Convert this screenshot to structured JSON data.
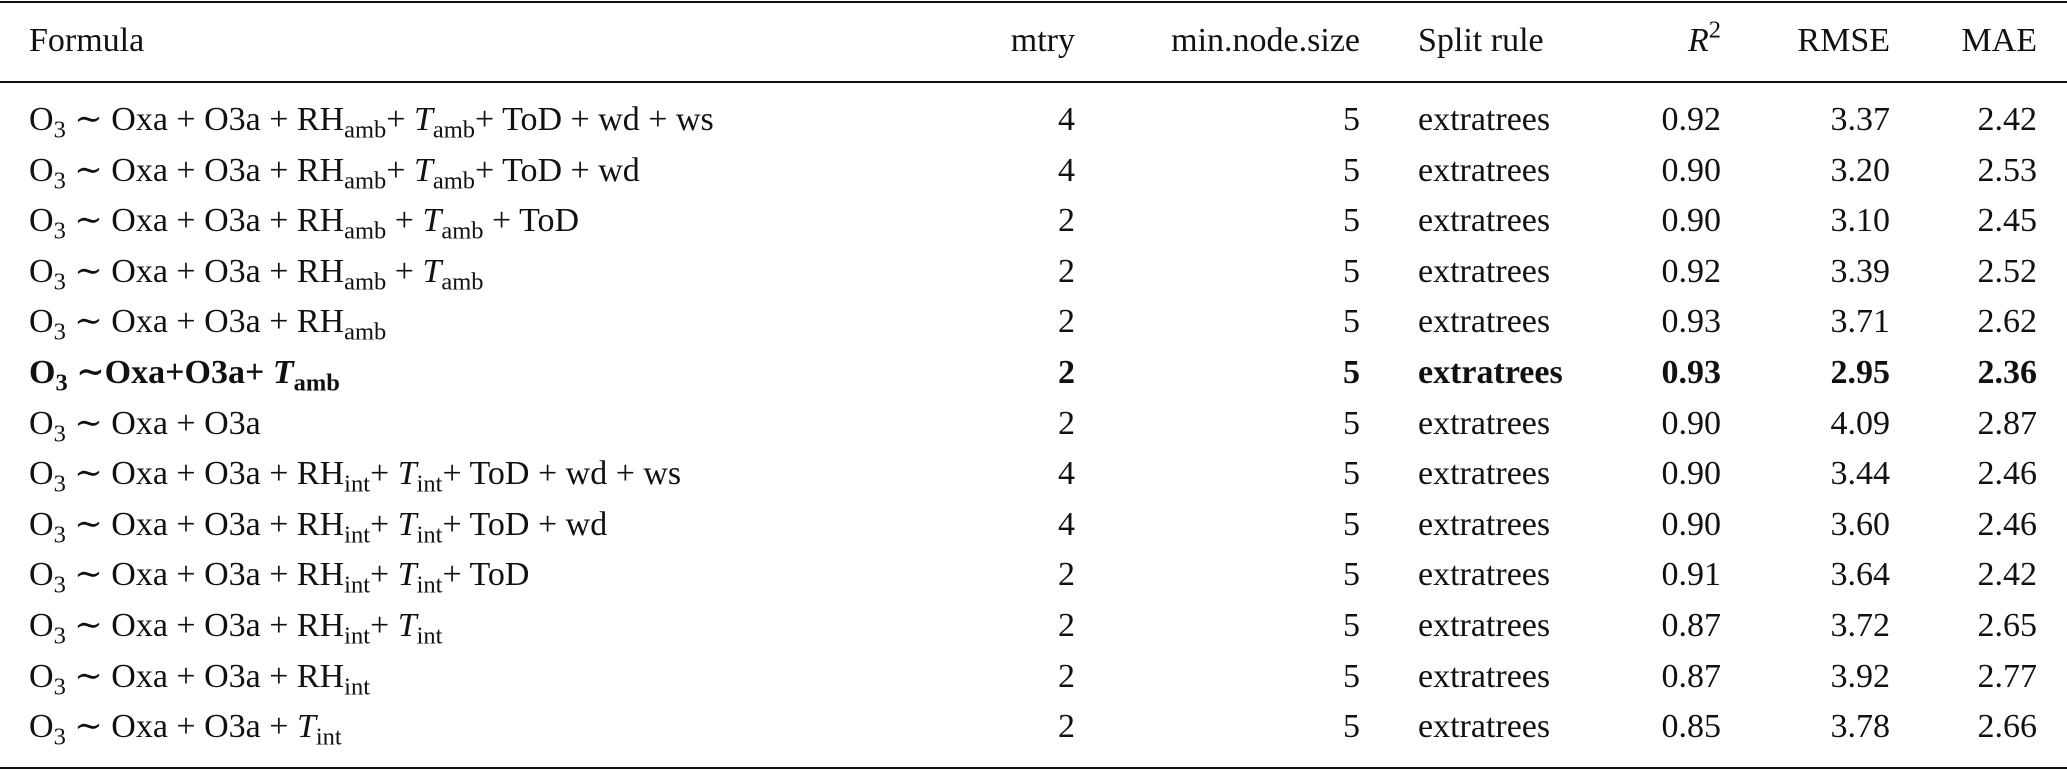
{
  "table": {
    "header": [
      "Formula",
      "mtry",
      "min.node.size",
      "Split rule",
      [
        {
          "it": "R"
        },
        {
          "sup": "2"
        }
      ],
      "RMSE",
      "MAE"
    ],
    "highlight_row": 5,
    "rows": [
      [
        [
          "O",
          {
            "sub": "3"
          },
          " ∼ Oxa + O3a + RH",
          {
            "sub": "amb"
          },
          "+ ",
          {
            "it": "T"
          },
          {
            "sub": "amb"
          },
          "+ ToD + wd + ws"
        ],
        "4",
        "5",
        "extratrees",
        "0.92",
        "3.37",
        "2.42"
      ],
      [
        [
          "O",
          {
            "sub": "3"
          },
          " ∼ Oxa + O3a + RH",
          {
            "sub": "amb"
          },
          "+ ",
          {
            "it": "T"
          },
          {
            "sub": "amb"
          },
          "+ ToD + wd"
        ],
        "4",
        "5",
        "extratrees",
        "0.90",
        "3.20",
        "2.53"
      ],
      [
        [
          "O",
          {
            "sub": "3"
          },
          " ∼ Oxa + O3a + RH",
          {
            "sub": "amb"
          },
          " + ",
          {
            "it": "T"
          },
          {
            "sub": "amb"
          },
          " + ToD"
        ],
        "2",
        "5",
        "extratrees",
        "0.90",
        "3.10",
        "2.45"
      ],
      [
        [
          "O",
          {
            "sub": "3"
          },
          " ∼ Oxa + O3a + RH",
          {
            "sub": "amb"
          },
          " + ",
          {
            "it": "T"
          },
          {
            "sub": "amb"
          }
        ],
        "2",
        "5",
        "extratrees",
        "0.92",
        "3.39",
        "2.52"
      ],
      [
        [
          "O",
          {
            "sub": "3"
          },
          " ∼ Oxa + O3a + RH",
          {
            "sub": "amb"
          }
        ],
        "2",
        "5",
        "extratrees",
        "0.93",
        "3.71",
        "2.62"
      ],
      [
        [
          "O",
          {
            "sub": "3"
          },
          " ∼Oxa+O3a+ ",
          {
            "it": "T"
          },
          {
            "sub": "amb"
          }
        ],
        "2",
        "5",
        "extratrees",
        "0.93",
        "2.95",
        "2.36"
      ],
      [
        [
          "O",
          {
            "sub": "3"
          },
          " ∼ Oxa + O3a"
        ],
        "2",
        "5",
        "extratrees",
        "0.90",
        "4.09",
        "2.87"
      ],
      [
        [
          "O",
          {
            "sub": "3"
          },
          " ∼ Oxa + O3a + RH",
          {
            "sub": "int"
          },
          "+ ",
          {
            "it": "T"
          },
          {
            "sub": "int"
          },
          "+ ToD + wd + ws"
        ],
        "4",
        "5",
        "extratrees",
        "0.90",
        "3.44",
        "2.46"
      ],
      [
        [
          "O",
          {
            "sub": "3"
          },
          " ∼ Oxa + O3a + RH",
          {
            "sub": "int"
          },
          "+ ",
          {
            "it": "T"
          },
          {
            "sub": "int"
          },
          "+ ToD + wd"
        ],
        "4",
        "5",
        "extratrees",
        "0.90",
        "3.60",
        "2.46"
      ],
      [
        [
          "O",
          {
            "sub": "3"
          },
          " ∼ Oxa + O3a + RH",
          {
            "sub": "int"
          },
          "+ ",
          {
            "it": "T"
          },
          {
            "sub": "int"
          },
          "+ ToD"
        ],
        "2",
        "5",
        "extratrees",
        "0.91",
        "3.64",
        "2.42"
      ],
      [
        [
          "O",
          {
            "sub": "3"
          },
          " ∼ Oxa + O3a + RH",
          {
            "sub": "int"
          },
          "+ ",
          {
            "it": "T"
          },
          {
            "sub": "int"
          }
        ],
        "2",
        "5",
        "extratrees",
        "0.87",
        "3.72",
        "2.65"
      ],
      [
        [
          "O",
          {
            "sub": "3"
          },
          " ∼ Oxa + O3a + RH",
          {
            "sub": "int"
          }
        ],
        "2",
        "5",
        "extratrees",
        "0.87",
        "3.92",
        "2.77"
      ],
      [
        [
          "O",
          {
            "sub": "3"
          },
          " ∼ Oxa + O3a + ",
          {
            "it": "T"
          },
          {
            "sub": "int"
          }
        ],
        "2",
        "5",
        "extratrees",
        "0.85",
        "3.78",
        "2.66"
      ]
    ]
  }
}
